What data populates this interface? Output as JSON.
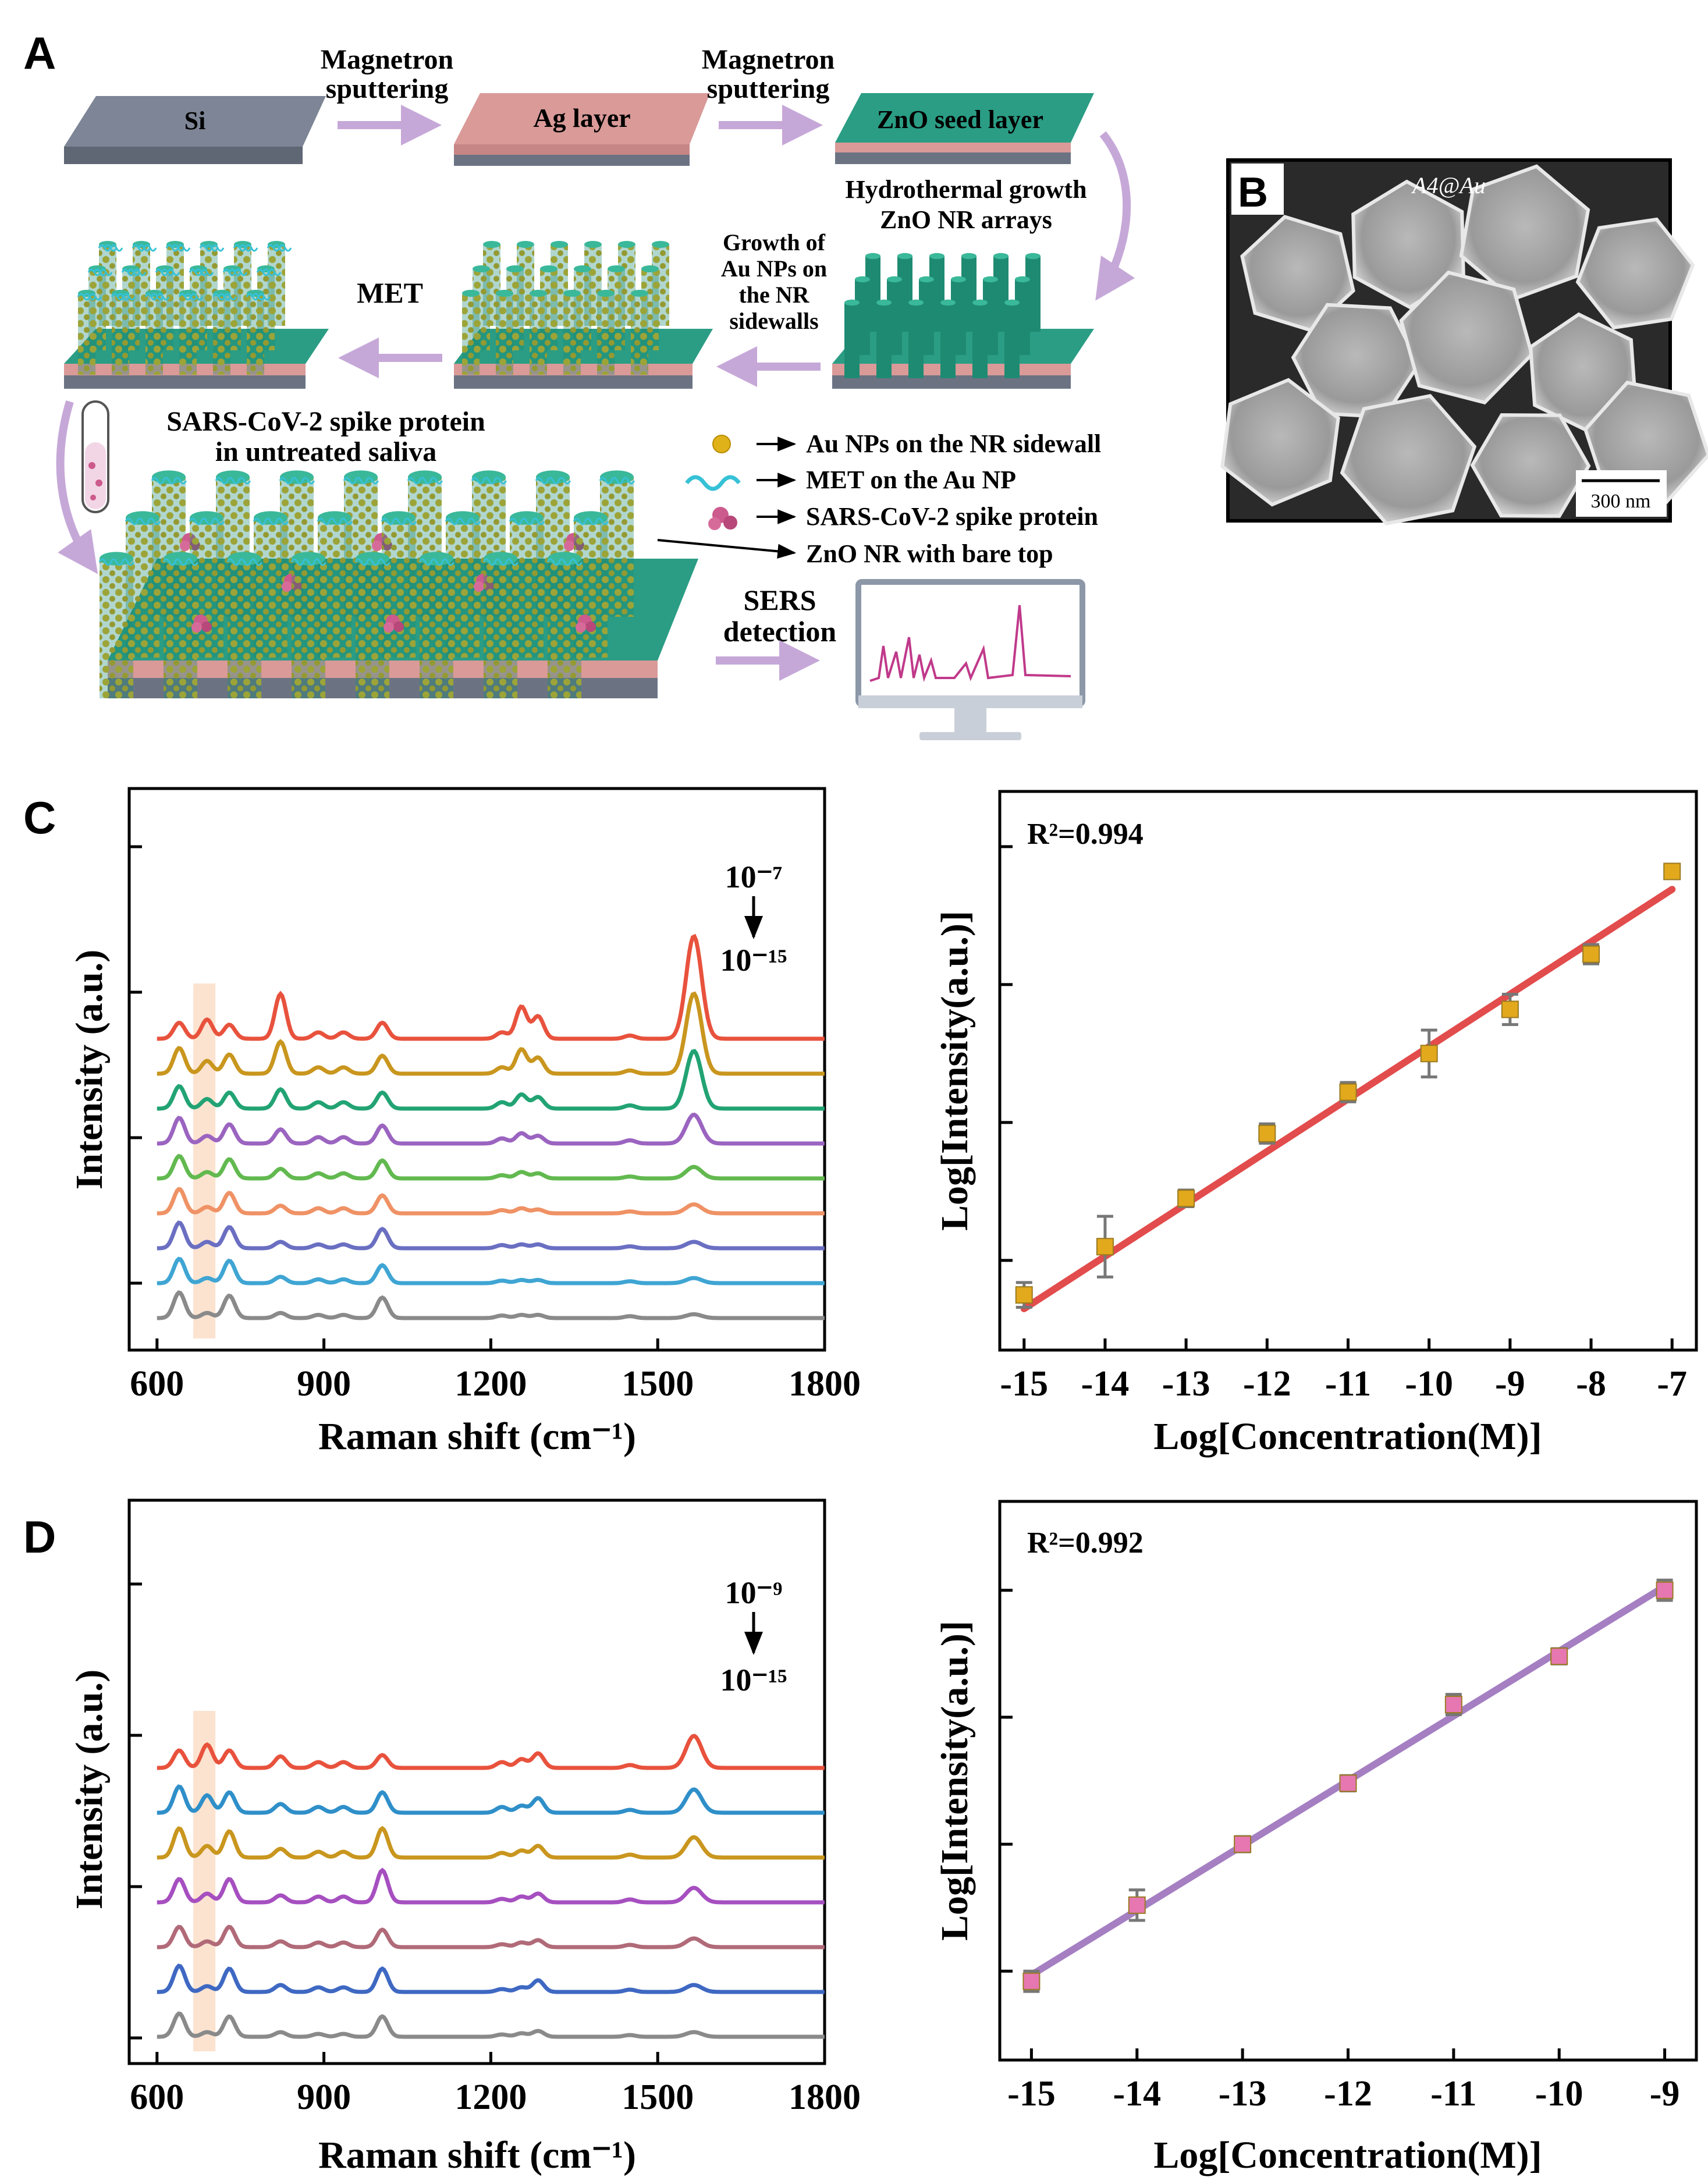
{
  "panels": {
    "a": "A",
    "b": "B",
    "c": "C",
    "d": "D"
  },
  "panel_a": {
    "layers": {
      "si": "Si",
      "ag": "Ag layer",
      "zno_seed": "ZnO seed layer"
    },
    "steps": {
      "sputter1": [
        "Magnetron",
        "sputtering"
      ],
      "sputter2": [
        "Magnetron",
        "sputtering"
      ],
      "hydrothermal": [
        "Hydrothermal growth",
        "ZnO NR arrays"
      ],
      "au_growth": [
        "Growth of",
        "Au NPs on",
        "the NR",
        "sidewalls"
      ],
      "met": "MET",
      "sample": [
        "SARS-CoV-2 spike protein",
        "in untreated saliva"
      ],
      "sers": [
        "SERS",
        "detection"
      ]
    },
    "legend": [
      "Au NPs on the NR sidewall",
      "MET on the Au NP",
      "SARS-CoV-2 spike protein",
      "ZnO NR with bare top"
    ],
    "colors": {
      "si": "#7d8596",
      "ag": "#d99a98",
      "zno": "#2a9d84",
      "au": "#e0b21a",
      "protein": "#cc5a8c",
      "met": "#36c1d6",
      "arrow": "#c6a8d8",
      "spectrum": "#c0398a"
    }
  },
  "panel_b": {
    "title": "A4@Au",
    "scalebar": "300 nm"
  },
  "chart_data": [
    {
      "id": "C-spectra",
      "type": "line",
      "title": "",
      "xlabel": "Raman shift (cm⁻¹)",
      "ylabel": "Intensity (a.u.)",
      "xlim": [
        550,
        1800
      ],
      "xticks": [
        "600",
        "900",
        "1200",
        "1500",
        "1800"
      ],
      "conc_top": "10⁻⁷",
      "conc_bottom": "10⁻¹⁵",
      "highlight_band": [
        665,
        705
      ],
      "peaks_cm": [
        640,
        690,
        730,
        822,
        890,
        935,
        1005,
        1220,
        1255,
        1285,
        1450,
        1565
      ],
      "series": [
        {
          "name": "1e-7",
          "color": "#e8523d",
          "peaks": [
            0.25,
            0.3,
            0.22,
            0.7,
            0.1,
            0.1,
            0.25,
            0.1,
            0.5,
            0.35,
            0.05,
            1.6
          ]
        },
        {
          "name": "1e-8",
          "color": "#c9961e",
          "peaks": [
            0.4,
            0.2,
            0.3,
            0.5,
            0.1,
            0.1,
            0.28,
            0.1,
            0.38,
            0.25,
            0.05,
            1.25
          ]
        },
        {
          "name": "1e-9",
          "color": "#22a374",
          "peaks": [
            0.35,
            0.15,
            0.25,
            0.3,
            0.1,
            0.1,
            0.25,
            0.1,
            0.22,
            0.18,
            0.05,
            0.9
          ]
        },
        {
          "name": "1e-10",
          "color": "#9b64c0",
          "peaks": [
            0.4,
            0.12,
            0.3,
            0.22,
            0.1,
            0.1,
            0.28,
            0.08,
            0.16,
            0.12,
            0.05,
            0.45
          ]
        },
        {
          "name": "1e-11",
          "color": "#62b94f",
          "peaks": [
            0.35,
            0.1,
            0.3,
            0.15,
            0.08,
            0.08,
            0.28,
            0.05,
            0.1,
            0.08,
            0.03,
            0.18
          ]
        },
        {
          "name": "1e-12",
          "color": "#ef9265",
          "peaks": [
            0.38,
            0.1,
            0.32,
            0.12,
            0.08,
            0.08,
            0.28,
            0.05,
            0.08,
            0.06,
            0.03,
            0.14
          ]
        },
        {
          "name": "1e-13",
          "color": "#6a6fc2",
          "peaks": [
            0.4,
            0.1,
            0.33,
            0.1,
            0.06,
            0.06,
            0.3,
            0.05,
            0.06,
            0.06,
            0.03,
            0.1
          ]
        },
        {
          "name": "1e-14",
          "color": "#3fa5d3",
          "peaks": [
            0.38,
            0.08,
            0.35,
            0.1,
            0.06,
            0.06,
            0.28,
            0.04,
            0.05,
            0.05,
            0.03,
            0.08
          ]
        },
        {
          "name": "1e-15",
          "color": "#8a8a8a",
          "peaks": [
            0.4,
            0.08,
            0.35,
            0.08,
            0.05,
            0.05,
            0.32,
            0.04,
            0.05,
            0.05,
            0.03,
            0.06
          ]
        }
      ]
    },
    {
      "id": "C-calibration",
      "type": "scatter",
      "title": "",
      "annotation": "R²=0.994",
      "xlabel": "Log[Concentration(M)]",
      "ylabel": "Log[Intensity(a.u.)]",
      "xlim": [
        -15.3,
        -6.7
      ],
      "ylim": [
        2.35,
        6.4
      ],
      "xticks": [
        "-15",
        "-14",
        "-13",
        "-12",
        "-11",
        "-10",
        "-9",
        "-8",
        "-7"
      ],
      "marker_color": "#e2a91d",
      "fit_color": "#e24c4c",
      "fit": {
        "slope": 0.38,
        "intercept": 8.35
      },
      "points": [
        {
          "x": -15,
          "y": 2.75,
          "err": 0.09
        },
        {
          "x": -14,
          "y": 3.1,
          "err": 0.22
        },
        {
          "x": -13,
          "y": 3.45,
          "err": 0.06
        },
        {
          "x": -12,
          "y": 3.92,
          "err": 0.07
        },
        {
          "x": -11,
          "y": 4.22,
          "err": 0.07
        },
        {
          "x": -10,
          "y": 4.5,
          "err": 0.17
        },
        {
          "x": -9,
          "y": 4.82,
          "err": 0.11
        },
        {
          "x": -8,
          "y": 5.22,
          "err": 0.07
        },
        {
          "x": -7,
          "y": 5.82,
          "err": 0.05
        }
      ]
    },
    {
      "id": "D-spectra",
      "type": "line",
      "title": "",
      "xlabel": "Raman shift (cm⁻¹)",
      "ylabel": "Intensity (a.u.)",
      "xlim": [
        550,
        1800
      ],
      "xticks": [
        "600",
        "900",
        "1200",
        "1500",
        "1800"
      ],
      "conc_top": "10⁻⁹",
      "conc_bottom": "10⁻¹⁵",
      "highlight_band": [
        665,
        705
      ],
      "peaks_cm": [
        640,
        690,
        730,
        822,
        890,
        935,
        1005,
        1220,
        1255,
        1285,
        1450,
        1565
      ],
      "series": [
        {
          "name": "1e-9",
          "color": "#e8523d",
          "peaks": [
            0.3,
            0.4,
            0.3,
            0.2,
            0.1,
            0.1,
            0.22,
            0.1,
            0.15,
            0.25,
            0.05,
            0.55
          ]
        },
        {
          "name": "1e-10",
          "color": "#2f8fc9",
          "peaks": [
            0.45,
            0.3,
            0.35,
            0.15,
            0.1,
            0.1,
            0.35,
            0.1,
            0.12,
            0.25,
            0.05,
            0.4
          ]
        },
        {
          "name": "1e-11",
          "color": "#c9961e",
          "peaks": [
            0.5,
            0.2,
            0.45,
            0.15,
            0.1,
            0.1,
            0.5,
            0.08,
            0.12,
            0.2,
            0.05,
            0.35
          ]
        },
        {
          "name": "1e-12",
          "color": "#a64fc0",
          "peaks": [
            0.4,
            0.15,
            0.4,
            0.12,
            0.1,
            0.1,
            0.55,
            0.06,
            0.1,
            0.15,
            0.05,
            0.25
          ]
        },
        {
          "name": "1e-13",
          "color": "#b06a78",
          "peaks": [
            0.35,
            0.1,
            0.35,
            0.1,
            0.08,
            0.08,
            0.3,
            0.05,
            0.08,
            0.12,
            0.04,
            0.15
          ]
        },
        {
          "name": "1e-14",
          "color": "#3e68c2",
          "peaks": [
            0.45,
            0.1,
            0.4,
            0.12,
            0.08,
            0.08,
            0.4,
            0.05,
            0.08,
            0.2,
            0.04,
            0.12
          ]
        },
        {
          "name": "1e-15",
          "color": "#8a8a8a",
          "peaks": [
            0.4,
            0.08,
            0.35,
            0.08,
            0.05,
            0.05,
            0.35,
            0.04,
            0.06,
            0.1,
            0.03,
            0.08
          ]
        }
      ]
    },
    {
      "id": "D-calibration",
      "type": "scatter",
      "title": "",
      "annotation": "R²=0.992",
      "xlabel": "Log[Concentration(M)]",
      "ylabel": "Log[Intensity(a.u.)]",
      "xlim": [
        -15.3,
        -8.7
      ],
      "ylim": [
        3.15,
        5.35
      ],
      "xticks": [
        "-15",
        "-14",
        "-13",
        "-12",
        "-11",
        "-10",
        "-9"
      ],
      "marker_color": "#e677b1",
      "fit_color": "#a57fc2",
      "fit": {
        "slope": 0.255,
        "intercept": 7.31
      },
      "points": [
        {
          "x": -15,
          "y": 3.46,
          "err": 0.04
        },
        {
          "x": -14,
          "y": 3.76,
          "err": 0.06
        },
        {
          "x": -13,
          "y": 4.0,
          "err": 0.03
        },
        {
          "x": -12,
          "y": 4.24,
          "err": 0.03
        },
        {
          "x": -11,
          "y": 4.55,
          "err": 0.04
        },
        {
          "x": -10,
          "y": 4.74,
          "err": 0.03
        },
        {
          "x": -9,
          "y": 5.0,
          "err": 0.04
        }
      ]
    }
  ]
}
